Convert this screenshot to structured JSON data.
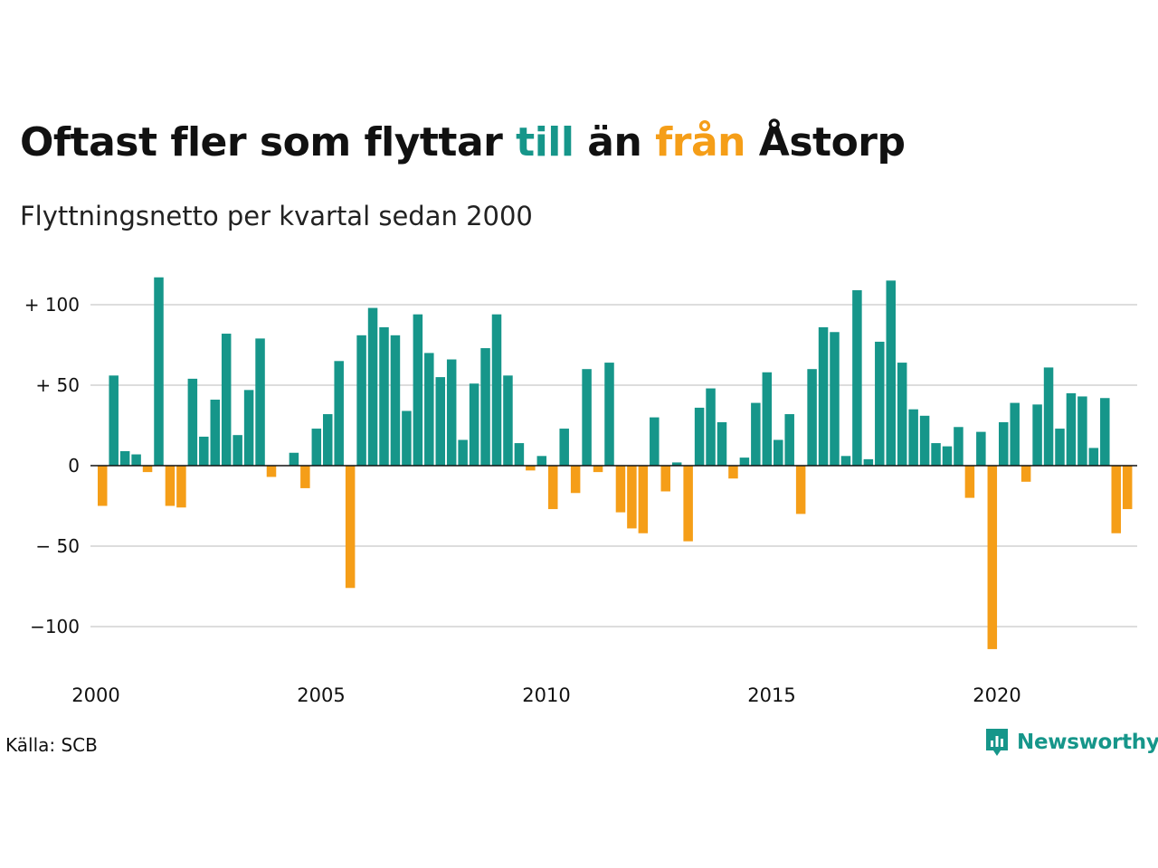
{
  "title": {
    "before": "Oftast fler som flyttar ",
    "till": "till",
    "middle": " än ",
    "fran": "från",
    "after": " Åstorp"
  },
  "subtitle": "Flyttningsnetto per kvartal sedan 2000",
  "source": "Källa: SCB",
  "brand": {
    "name": "Newsworthy",
    "icon": "newsworthy-logo-icon"
  },
  "colors": {
    "positive": "#16968a",
    "negative": "#f59e18",
    "grid": "#dddddd",
    "axis": "#111111"
  },
  "chart_data": {
    "type": "bar",
    "title": "Oftast fler som flyttar till än från Åstorp",
    "subtitle": "Flyttningsnetto per kvartal sedan 2000",
    "x_start": "2000 Q1",
    "quarters_per_year": 4,
    "x_ticks": [
      "2000",
      "2005",
      "2010",
      "2015",
      "2020"
    ],
    "y_ticks": [
      {
        "value": 100,
        "label": "+ 100"
      },
      {
        "value": 50,
        "label": "+  50"
      },
      {
        "value": 0,
        "label": "0"
      },
      {
        "value": -50,
        "label": "− 50"
      },
      {
        "value": -100,
        "label": "−100"
      }
    ],
    "ylim": [
      -120,
      120
    ],
    "grid": true,
    "values": [
      -25,
      56,
      9,
      7,
      -4,
      117,
      -25,
      -26,
      54,
      18,
      41,
      82,
      19,
      47,
      79,
      -7,
      0,
      8,
      -14,
      23,
      32,
      65,
      -76,
      81,
      98,
      86,
      81,
      34,
      94,
      70,
      55,
      66,
      16,
      51,
      73,
      94,
      56,
      14,
      -3,
      6,
      -27,
      23,
      -17,
      60,
      -4,
      64,
      -29,
      -39,
      -42,
      30,
      -16,
      2,
      -47,
      36,
      48,
      27,
      -8,
      5,
      39,
      58,
      16,
      32,
      -30,
      60,
      86,
      83,
      6,
      109,
      4,
      77,
      115,
      64,
      35,
      31,
      14,
      12,
      24,
      -20,
      21,
      -114,
      27,
      39,
      -10,
      38,
      61,
      23,
      45,
      43,
      11,
      42,
      -42,
      -27
    ]
  }
}
